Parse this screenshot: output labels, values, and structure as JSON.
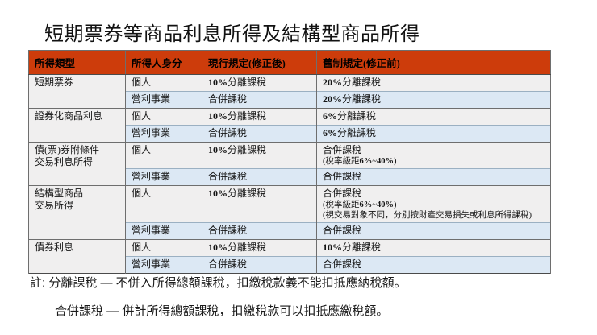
{
  "slide": {
    "title": "短期票券等商品利息所得及結構型商品所得"
  },
  "table": {
    "headers": [
      "所得類型",
      "所得人身分",
      "現行規定(修正後)",
      "舊制規定(修正前)"
    ],
    "groups": [
      {
        "category": "短期票券",
        "rows": [
          {
            "identity": "個人",
            "current": "10%分離課稅",
            "old": "20%分離課稅"
          },
          {
            "identity": "營利事業",
            "current": "合併課稅",
            "old": "20%分離課稅"
          }
        ]
      },
      {
        "category": "證券化商品利息",
        "rows": [
          {
            "identity": "個人",
            "current": "10%分離課稅",
            "old": "6%分離課稅"
          },
          {
            "identity": "營利事業",
            "current": "合併課稅",
            "old": "6%分離課稅"
          }
        ]
      },
      {
        "category": "債(票)券附條件\n交易利息所得",
        "rows": [
          {
            "identity": "個人",
            "current": "10%分離課稅",
            "old": "合併課稅\n(稅率級距6%~40%)"
          },
          {
            "identity": "營利事業",
            "current": "合併課稅",
            "old": "合併課稅"
          }
        ]
      },
      {
        "category": "結構型商品\n交易所得",
        "rows": [
          {
            "identity": "個人",
            "current": "10%分離課稅",
            "old": "合併課稅\n(稅率級距6%~40%)\n(視交易對象不同，分別按財產交易損失或利息所得課稅)"
          },
          {
            "identity": "營利事業",
            "current": "合併課稅",
            "old": "合併課稅"
          }
        ]
      },
      {
        "category": "債券利息",
        "rows": [
          {
            "identity": "個人",
            "current": "10%分離課稅",
            "old": "10%分離課稅"
          },
          {
            "identity": "營利事業",
            "current": "合併課稅",
            "old": "合併課稅"
          }
        ]
      }
    ]
  },
  "notes": [
    "註: 分離課稅 — 不併入所得總額課稅，扣繳稅款義不能扣抵應納稅額。",
    "合併課稅 — 併計所得總額課稅，扣繳稅款可以扣抵應繳稅額。"
  ],
  "colors": {
    "header_bg": "#cd3c0b",
    "header_text": "#000000",
    "row_light": "#f0efef",
    "row_blue": "#dce8f4",
    "border": "#6e6e6e"
  }
}
